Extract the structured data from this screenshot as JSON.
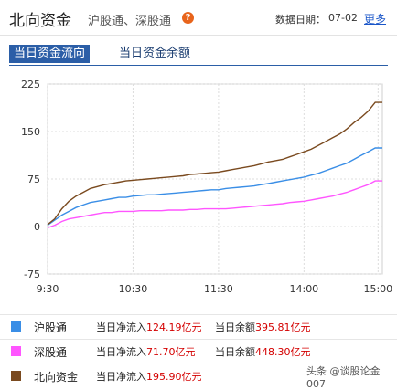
{
  "header": {
    "title": "北向资金",
    "subtitle": "沪股通、深股通",
    "info_icon": "question-icon",
    "date_label": "数据日期：",
    "date_value": "07-02",
    "more": "更多"
  },
  "tabs": [
    {
      "label": "当日资金流向",
      "active": true
    },
    {
      "label": "当日资金余额",
      "active": false
    }
  ],
  "chart_data": {
    "type": "line",
    "x_ticks": [
      "9:30",
      "10:30",
      "11:30",
      "14:00",
      "15:00"
    ],
    "y_ticks": [
      225,
      150,
      75,
      0,
      -75
    ],
    "ylim": [
      -75,
      225
    ],
    "grid": true,
    "series": [
      {
        "name": "沪股通",
        "color": "#3a8ee6",
        "points": [
          [
            0,
            2
          ],
          [
            5,
            10
          ],
          [
            10,
            18
          ],
          [
            15,
            24
          ],
          [
            20,
            30
          ],
          [
            25,
            34
          ],
          [
            30,
            38
          ],
          [
            35,
            40
          ],
          [
            40,
            42
          ],
          [
            45,
            44
          ],
          [
            50,
            46
          ],
          [
            55,
            46
          ],
          [
            60,
            48
          ],
          [
            65,
            49
          ],
          [
            70,
            50
          ],
          [
            75,
            50
          ],
          [
            80,
            51
          ],
          [
            85,
            52
          ],
          [
            90,
            53
          ],
          [
            95,
            54
          ],
          [
            100,
            55
          ],
          [
            105,
            56
          ],
          [
            110,
            57
          ],
          [
            115,
            58
          ],
          [
            120,
            58
          ],
          [
            125,
            60
          ],
          [
            130,
            61
          ],
          [
            135,
            62
          ],
          [
            140,
            63
          ],
          [
            145,
            64
          ],
          [
            150,
            66
          ],
          [
            155,
            68
          ],
          [
            160,
            70
          ],
          [
            165,
            72
          ],
          [
            170,
            74
          ],
          [
            175,
            76
          ],
          [
            180,
            78
          ],
          [
            185,
            81
          ],
          [
            190,
            84
          ],
          [
            195,
            88
          ],
          [
            200,
            92
          ],
          [
            205,
            96
          ],
          [
            210,
            100
          ],
          [
            215,
            106
          ],
          [
            220,
            112
          ],
          [
            225,
            118
          ],
          [
            230,
            124
          ],
          [
            235,
            124
          ]
        ]
      },
      {
        "name": "深股通",
        "color": "#ff55ff",
        "points": [
          [
            0,
            -2
          ],
          [
            5,
            2
          ],
          [
            10,
            8
          ],
          [
            15,
            12
          ],
          [
            20,
            14
          ],
          [
            25,
            16
          ],
          [
            30,
            18
          ],
          [
            35,
            20
          ],
          [
            40,
            22
          ],
          [
            45,
            22
          ],
          [
            50,
            24
          ],
          [
            55,
            24
          ],
          [
            60,
            24
          ],
          [
            65,
            25
          ],
          [
            70,
            25
          ],
          [
            75,
            25
          ],
          [
            80,
            25
          ],
          [
            85,
            26
          ],
          [
            90,
            26
          ],
          [
            95,
            26
          ],
          [
            100,
            27
          ],
          [
            105,
            27
          ],
          [
            110,
            28
          ],
          [
            115,
            28
          ],
          [
            120,
            28
          ],
          [
            125,
            28
          ],
          [
            130,
            29
          ],
          [
            135,
            30
          ],
          [
            140,
            31
          ],
          [
            145,
            32
          ],
          [
            150,
            33
          ],
          [
            155,
            34
          ],
          [
            160,
            35
          ],
          [
            165,
            36
          ],
          [
            170,
            38
          ],
          [
            175,
            39
          ],
          [
            180,
            40
          ],
          [
            185,
            42
          ],
          [
            190,
            44
          ],
          [
            195,
            46
          ],
          [
            200,
            48
          ],
          [
            205,
            51
          ],
          [
            210,
            54
          ],
          [
            215,
            58
          ],
          [
            220,
            62
          ],
          [
            225,
            66
          ],
          [
            230,
            72
          ],
          [
            235,
            72
          ]
        ]
      },
      {
        "name": "北向资金",
        "color": "#7a4a1f",
        "points": [
          [
            0,
            3
          ],
          [
            5,
            12
          ],
          [
            10,
            28
          ],
          [
            15,
            40
          ],
          [
            20,
            48
          ],
          [
            25,
            54
          ],
          [
            30,
            60
          ],
          [
            35,
            63
          ],
          [
            40,
            66
          ],
          [
            45,
            68
          ],
          [
            50,
            70
          ],
          [
            55,
            72
          ],
          [
            60,
            73
          ],
          [
            65,
            74
          ],
          [
            70,
            75
          ],
          [
            75,
            76
          ],
          [
            80,
            77
          ],
          [
            85,
            78
          ],
          [
            90,
            79
          ],
          [
            95,
            80
          ],
          [
            100,
            82
          ],
          [
            105,
            83
          ],
          [
            110,
            84
          ],
          [
            115,
            85
          ],
          [
            120,
            86
          ],
          [
            125,
            88
          ],
          [
            130,
            90
          ],
          [
            135,
            92
          ],
          [
            140,
            94
          ],
          [
            145,
            96
          ],
          [
            150,
            99
          ],
          [
            155,
            102
          ],
          [
            160,
            104
          ],
          [
            165,
            106
          ],
          [
            170,
            110
          ],
          [
            175,
            114
          ],
          [
            180,
            118
          ],
          [
            185,
            122
          ],
          [
            190,
            128
          ],
          [
            195,
            134
          ],
          [
            200,
            140
          ],
          [
            205,
            146
          ],
          [
            210,
            154
          ],
          [
            215,
            164
          ],
          [
            220,
            172
          ],
          [
            225,
            182
          ],
          [
            230,
            196
          ],
          [
            235,
            196
          ]
        ]
      }
    ]
  },
  "legend": [
    {
      "name": "沪股通",
      "color": "#3a8ee6",
      "inflow_label": "当日净流入",
      "inflow_value": "124.19亿元",
      "balance_label": "当日余额",
      "balance_value": "395.81亿元"
    },
    {
      "name": "深股通",
      "color": "#ff55ff",
      "inflow_label": "当日净流入",
      "inflow_value": "71.70亿元",
      "balance_label": "当日余额",
      "balance_value": "448.30亿元"
    },
    {
      "name": "北向资金",
      "color": "#7a4a1f",
      "inflow_label": "当日净流入",
      "inflow_value": "195.90亿元"
    }
  ],
  "watermark": "头条 @谈股论金007"
}
